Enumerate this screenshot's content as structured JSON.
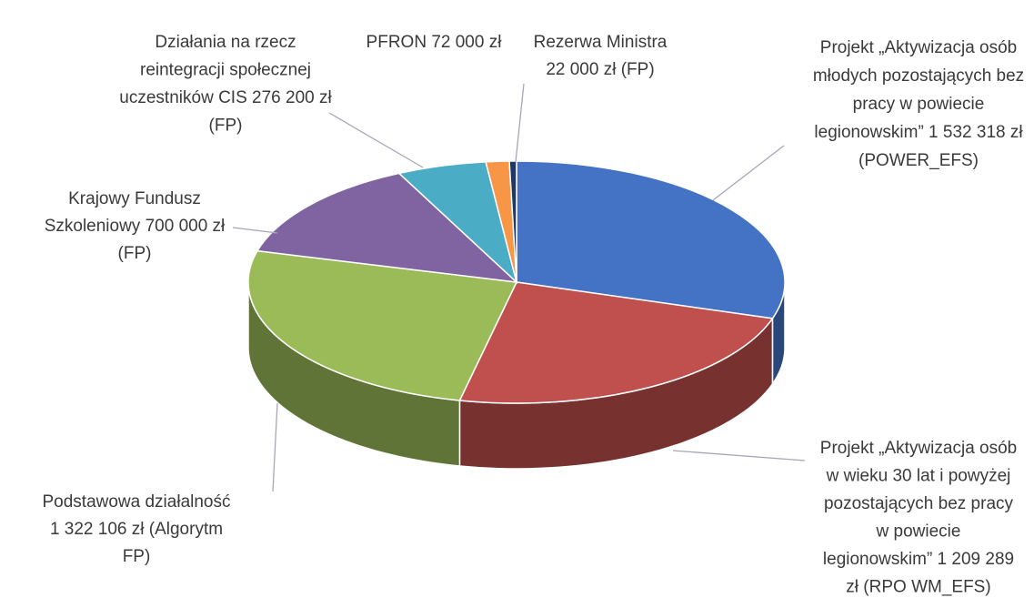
{
  "chart_data": {
    "type": "pie3d",
    "categories": [
      [
        "Projekt „Aktywizacja osób",
        "młodych pozostających bez",
        "pracy w powiecie",
        "legionowskim” 1 532 318 zł",
        "(POWER_EFS)"
      ],
      [
        "Projekt „Aktywizacja osób",
        "w wieku 30 lat i powyżej",
        "pozostających bez pracy",
        "w powiecie",
        "legionowskim” 1 209 289",
        "zł (RPO WM_EFS)"
      ],
      [
        "Podstawowa działalność",
        "1 322 106 zł (Algorytm",
        "FP)"
      ],
      [
        "Krajowy Fundusz",
        "Szkoleniowy 700 000 zł",
        "(FP)"
      ],
      [
        "Działania na rzecz",
        "reintegracji społecznej",
        "uczestników CIS 276 200 zł",
        "(FP)"
      ],
      [
        "PFRON 72 000 zł"
      ],
      [
        "Rezerwa Ministra",
        "22 000 zł (FP)"
      ]
    ],
    "values": [
      1532318,
      1209289,
      1322106,
      700000,
      276200,
      72000,
      22000
    ],
    "colors": [
      "#4472c4",
      "#c0504d",
      "#9bbb59",
      "#8064a2",
      "#4bacc6",
      "#f79646",
      "#1f3864"
    ]
  }
}
